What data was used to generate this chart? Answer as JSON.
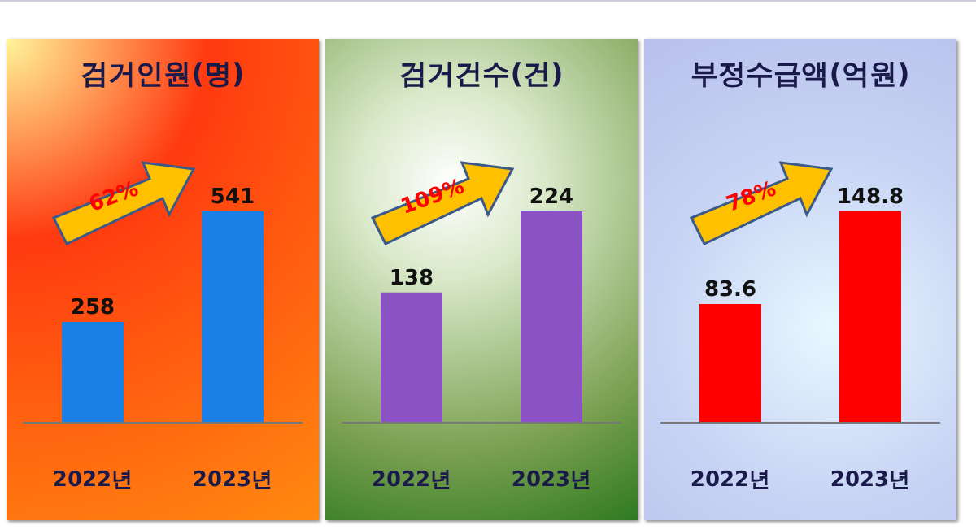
{
  "chart_data": [
    {
      "type": "bar",
      "title": "검거인원(명)",
      "categories": [
        "2022년",
        "2023년"
      ],
      "values": [
        258,
        541
      ],
      "color": "#1a7fe6",
      "data_labels": true,
      "annotations": [
        "62%"
      ]
    },
    {
      "type": "bar",
      "title": "검거건수(건)",
      "categories": [
        "2022년",
        "2023년"
      ],
      "values": [
        138,
        224
      ],
      "color": "#8a52c4",
      "data_labels": true,
      "annotations": [
        "109%"
      ]
    },
    {
      "type": "bar",
      "title": "부정수급액(억원)",
      "categories": [
        "2022년",
        "2023년"
      ],
      "values": [
        83.6,
        148.8
      ],
      "color": "#ff0000",
      "data_labels": true,
      "annotations": [
        "78%"
      ]
    }
  ]
}
